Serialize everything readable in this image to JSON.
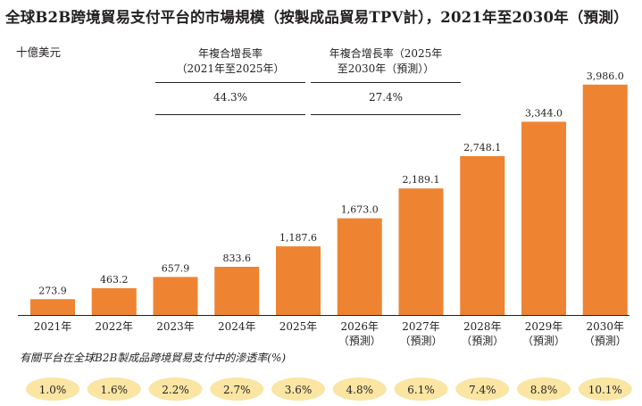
{
  "title": "全球B2B跨境貿易支付平台的市場規模（按製成品貿易TPV計），2021年至2030年（預測）",
  "unit_label": "十億美元",
  "cagr": [
    {
      "header_line1": "年複合增長率",
      "header_line2": "（2021年至2025年）",
      "value": "44.3%"
    },
    {
      "header_line1": "年複合增長率（2025年",
      "header_line2": "至2030年（預測））",
      "value": "27.4%"
    }
  ],
  "penetration_title": "有關平台在全球B2B製成品跨境貿易支付中的滲透率(%)",
  "colors": {
    "bar": "#ee8432",
    "bubble": "#fae5a3",
    "axis": "#231f20"
  },
  "chart_data": {
    "type": "bar",
    "title": "全球B2B跨境貿易支付平台的市場規模（按製成品貿易TPV計），2021年至2030年（預測）",
    "ylabel": "十億美元",
    "xlabel": "",
    "ylim": [
      0,
      4400
    ],
    "categories": [
      "2021年",
      "2022年",
      "2023年",
      "2024年",
      "2025年",
      "2026年",
      "2027年",
      "2028年",
      "2029年",
      "2030年"
    ],
    "category_notes": [
      "",
      "",
      "",
      "",
      "",
      "（預測）",
      "（預測）",
      "（預測）",
      "（預測）",
      "（預測）"
    ],
    "values": [
      273.9,
      463.2,
      657.9,
      833.6,
      1187.6,
      1673.0,
      2189.1,
      2748.1,
      3344.0,
      3986.0
    ],
    "value_labels": [
      "273.9",
      "463.2",
      "657.9",
      "833.6",
      "1,187.6",
      "1,673.0",
      "2,189.1",
      "2,748.1",
      "3,344.0",
      "3,986.0"
    ],
    "penetration_labels": [
      "1.0%",
      "1.6%",
      "2.2%",
      "2.7%",
      "3.6%",
      "4.8%",
      "6.1%",
      "7.4%",
      "8.8%",
      "10.1%"
    ]
  }
}
